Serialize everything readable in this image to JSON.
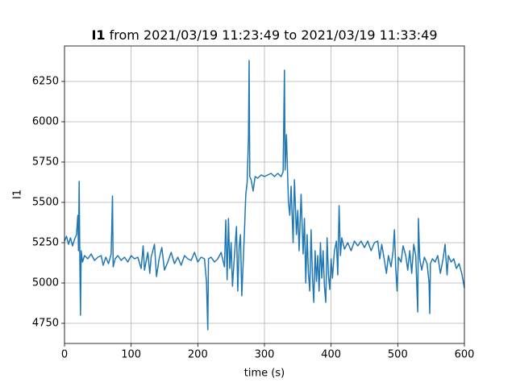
{
  "chart_data": {
    "type": "line",
    "title_bold": "I1",
    "title": "from 2021/03/19 11:23:49 to 2021/03/19 11:33:49",
    "xlabel": "time (s)",
    "ylabel": "I1",
    "color": "#1f77b4",
    "grid": true,
    "xlim": [
      0,
      600
    ],
    "ylim": [
      4625,
      6470
    ],
    "xticks": [
      0,
      100,
      200,
      300,
      400,
      500,
      600
    ],
    "yticks": [
      4750,
      5000,
      5250,
      5500,
      5750,
      6000,
      6250
    ],
    "x": [
      0,
      3,
      6,
      9,
      12,
      15,
      18,
      20,
      21,
      22,
      23,
      24,
      25,
      27,
      30,
      35,
      40,
      45,
      50,
      55,
      58,
      62,
      66,
      70,
      72,
      73,
      76,
      80,
      85,
      90,
      95,
      100,
      105,
      110,
      115,
      118,
      120,
      125,
      128,
      130,
      135,
      138,
      142,
      146,
      150,
      155,
      160,
      165,
      170,
      175,
      180,
      185,
      190,
      195,
      200,
      205,
      210,
      213,
      215,
      216,
      220,
      225,
      230,
      235,
      240,
      242,
      244,
      246,
      248,
      250,
      252,
      255,
      258,
      260,
      262,
      264,
      266,
      268,
      270,
      272,
      274,
      276,
      277,
      278,
      280,
      283,
      286,
      290,
      295,
      300,
      305,
      310,
      315,
      320,
      325,
      328,
      330,
      331,
      333,
      336,
      338,
      340,
      343,
      345,
      348,
      350,
      352,
      355,
      358,
      360,
      362,
      364,
      366,
      368,
      370,
      372,
      374,
      376,
      378,
      380,
      382,
      384,
      386,
      388,
      390,
      392,
      394,
      396,
      398,
      400,
      402,
      405,
      408,
      410,
      412,
      414,
      416,
      420,
      425,
      430,
      435,
      440,
      445,
      450,
      455,
      460,
      465,
      470,
      473,
      476,
      480,
      483,
      486,
      490,
      493,
      495,
      497,
      499,
      501,
      505,
      508,
      512,
      515,
      518,
      521,
      524,
      527,
      530,
      531,
      533,
      536,
      540,
      544,
      547,
      548,
      549,
      552,
      556,
      560,
      564,
      568,
      571,
      574,
      576,
      580,
      584,
      588,
      592,
      596,
      600
    ],
    "values": [
      5260,
      5290,
      5240,
      5280,
      5230,
      5270,
      5300,
      5420,
      5200,
      5630,
      5150,
      4800,
      5200,
      5130,
      5170,
      5150,
      5180,
      5140,
      5160,
      5170,
      5110,
      5160,
      5120,
      5180,
      5540,
      5100,
      5150,
      5170,
      5140,
      5160,
      5130,
      5170,
      5150,
      5160,
      5090,
      5230,
      5080,
      5190,
      5060,
      5160,
      5240,
      5040,
      5150,
      5220,
      5080,
      5130,
      5190,
      5120,
      5160,
      5110,
      5170,
      5150,
      5140,
      5190,
      5130,
      5160,
      5150,
      5010,
      4710,
      5150,
      5160,
      5130,
      5150,
      5190,
      5100,
      5390,
      5020,
      5400,
      5090,
      5250,
      4980,
      5170,
      5350,
      4950,
      5220,
      5300,
      4920,
      5120,
      5320,
      5550,
      5620,
      5900,
      6380,
      5660,
      5640,
      5570,
      5660,
      5650,
      5670,
      5660,
      5670,
      5680,
      5660,
      5680,
      5660,
      5690,
      6320,
      5700,
      5920,
      5500,
      5420,
      5600,
      5250,
      5640,
      5300,
      5450,
      5200,
      5550,
      5180,
      5400,
      5000,
      5300,
      5060,
      4950,
      5330,
      5040,
      4880,
      5200,
      5010,
      5170,
      4950,
      5250,
      5030,
      5200,
      4980,
      4880,
      5280,
      5050,
      4960,
      5150,
      5030,
      5200,
      5260,
      5050,
      5480,
      5170,
      5280,
      5210,
      5250,
      5200,
      5260,
      5230,
      5260,
      5220,
      5260,
      5200,
      5250,
      5260,
      5150,
      5240,
      5140,
      5060,
      5170,
      5100,
      5200,
      5330,
      5090,
      4950,
      5160,
      5130,
      5230,
      5170,
      5080,
      5200,
      5060,
      5240,
      5170,
      4820,
      5400,
      5150,
      5080,
      5160,
      5120,
      5000,
      4810,
      5120,
      5150,
      5130,
      5170,
      5060,
      5150,
      5240,
      5050,
      5170,
      5130,
      5150,
      5090,
      5120,
      5060,
      4970
    ]
  }
}
